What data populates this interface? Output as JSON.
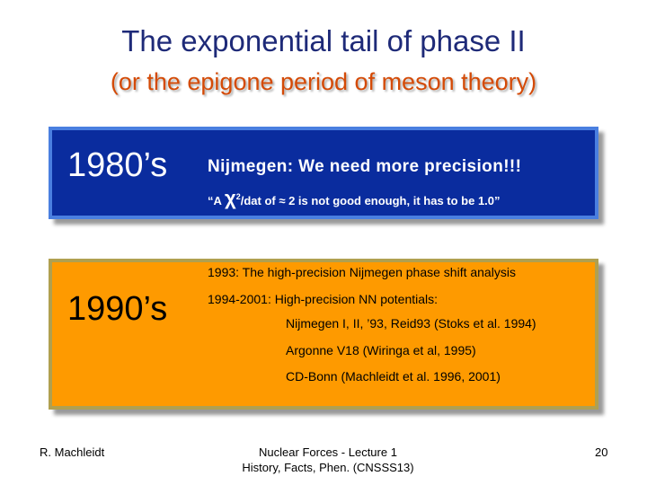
{
  "title": "The exponential tail of phase II",
  "subtitle": "(or the epigone period of meson theory)",
  "colors": {
    "title": "#1e2a78",
    "subtitle": "#d44a06",
    "box_1980_fill": "#0a2c9e",
    "box_1980_border": "#4a7fe0",
    "box_1990_fill": "#fe9a00"
  },
  "era_1980": {
    "decade": "1980’s",
    "headline": "Nijmegen: We need more precision!!!",
    "quote_open": "“A ",
    "chi_symbol": "χ",
    "chi_sup": "2",
    "quote_rest": "/dat of ≈ 2 is not good enough, it has to be 1.0”"
  },
  "era_1990": {
    "decade": "1990’s",
    "line_1993": "1993: The high-precision Nijmegen phase shift analysis",
    "line_1994": "1994-2001: High-precision NN potentials:",
    "potentials": [
      "Nijmegen I, II, ’93, Reid93 (Stoks et al. 1994)",
      "Argonne V18 (Wiringa et al, 1995)",
      "CD-Bonn (Machleidt et al. 1996, 2001)"
    ]
  },
  "footer": {
    "author": "R. Machleidt",
    "course_line1": "Nuclear Forces - Lecture 1",
    "course_line2": "History, Facts, Phen. (CNSSS13)",
    "page_number": "20"
  }
}
